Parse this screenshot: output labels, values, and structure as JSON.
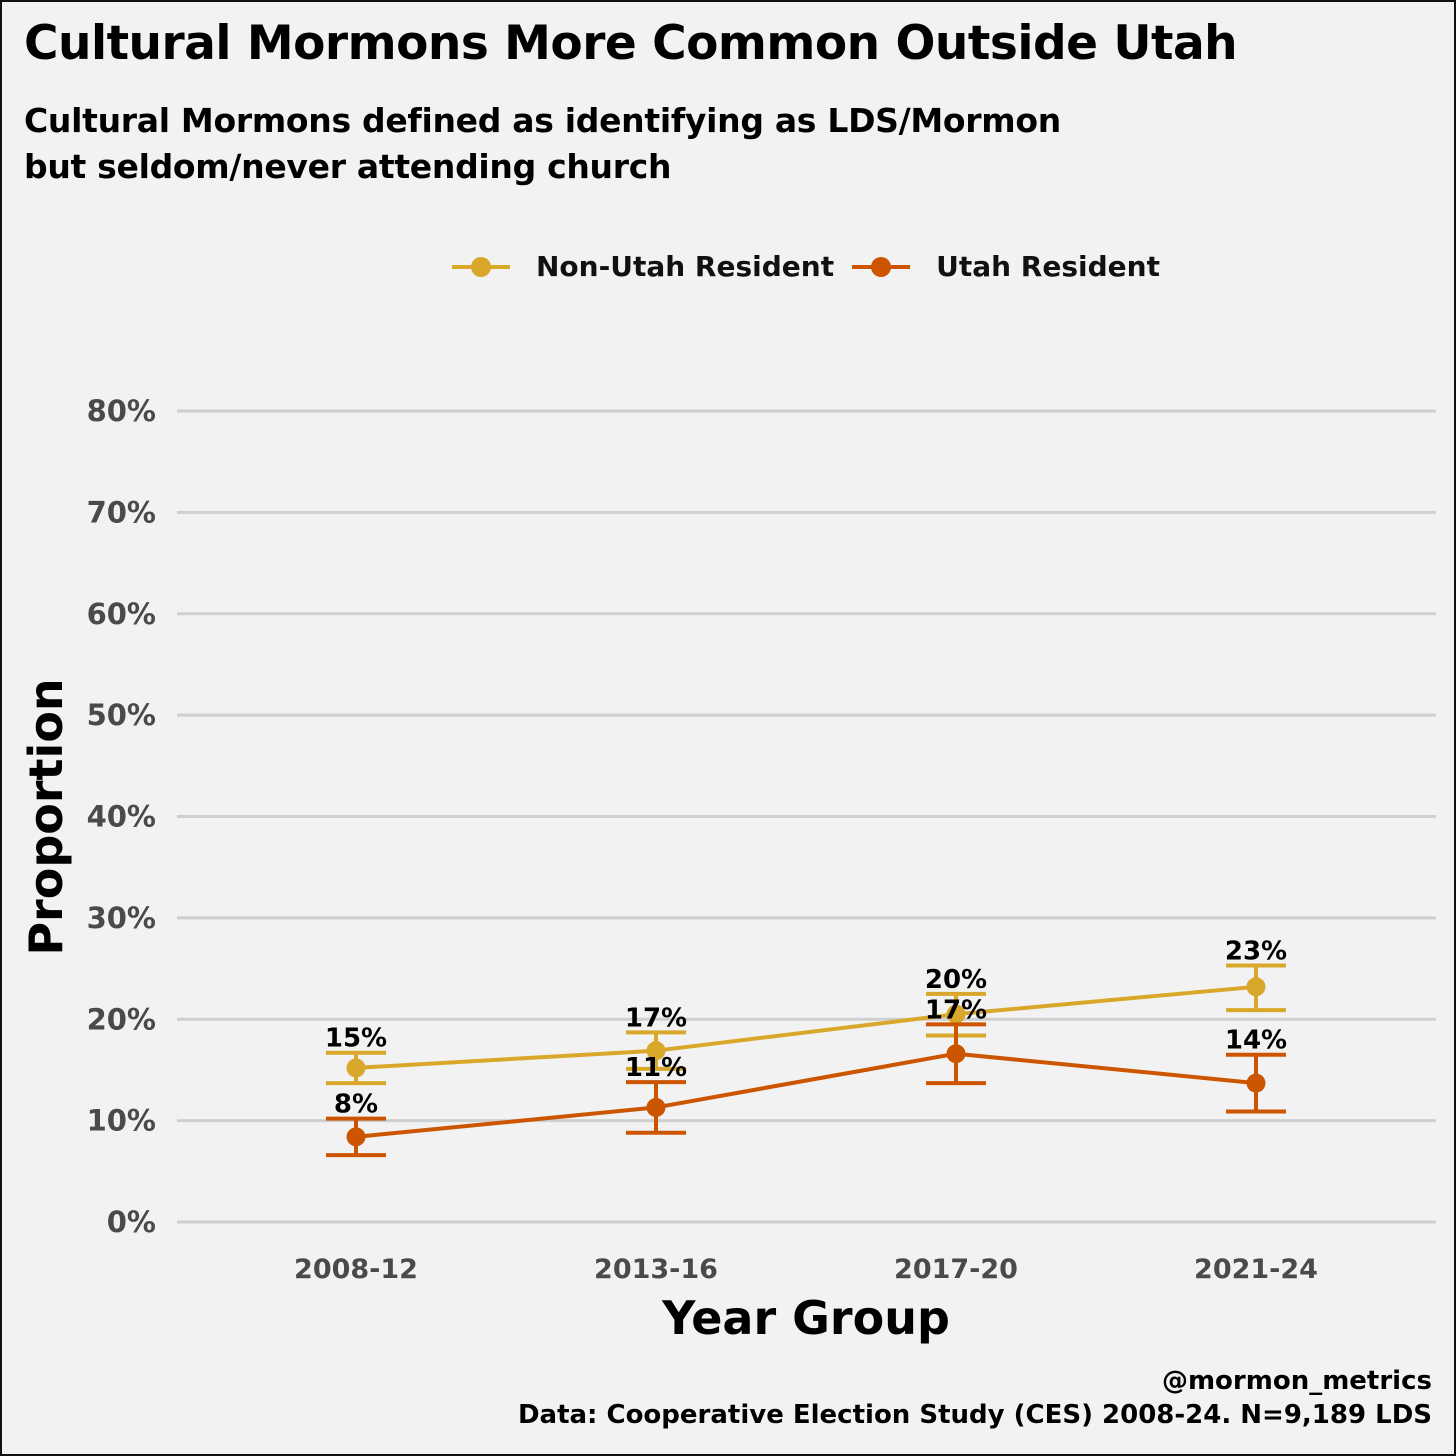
{
  "chart_data": {
    "type": "line",
    "title": "Cultural Mormons More Common Outside Utah",
    "subtitle_lines": [
      "Cultural Mormons defined as identifying as LDS/Mormon",
      "but seldom/never attending church"
    ],
    "xlabel": "Year Group",
    "ylabel": "Proportion",
    "categories": [
      "2008-12",
      "2013-16",
      "2017-20",
      "2021-24"
    ],
    "ylim": [
      0,
      0.8
    ],
    "yticks": [
      0,
      0.1,
      0.2,
      0.3,
      0.4,
      0.5,
      0.6,
      0.7,
      0.8
    ],
    "ytick_labels": [
      "0%",
      "10%",
      "20%",
      "30%",
      "40%",
      "50%",
      "60%",
      "70%",
      "80%"
    ],
    "grid": "horizontal",
    "legend_position": "top-center",
    "series": [
      {
        "name": "Non-Utah Resident",
        "color": "#d9a82a",
        "values": [
          0.152,
          0.169,
          0.205,
          0.232
        ],
        "ci_low": [
          0.137,
          0.151,
          0.184,
          0.209
        ],
        "ci_high": [
          0.167,
          0.187,
          0.225,
          0.253
        ],
        "labels": [
          "15%",
          "17%",
          "20%",
          "23%"
        ]
      },
      {
        "name": "Utah Resident",
        "color": "#cc5500",
        "values": [
          0.084,
          0.113,
          0.166,
          0.137
        ],
        "ci_low": [
          0.066,
          0.088,
          0.137,
          0.109
        ],
        "ci_high": [
          0.102,
          0.138,
          0.195,
          0.165
        ],
        "labels": [
          "8%",
          "11%",
          "17%",
          "14%"
        ]
      }
    ]
  },
  "caption": {
    "handle": "@mormon_metrics",
    "source": "Data: Cooperative Election Study (CES) 2008-24. N=9,189 LDS"
  }
}
